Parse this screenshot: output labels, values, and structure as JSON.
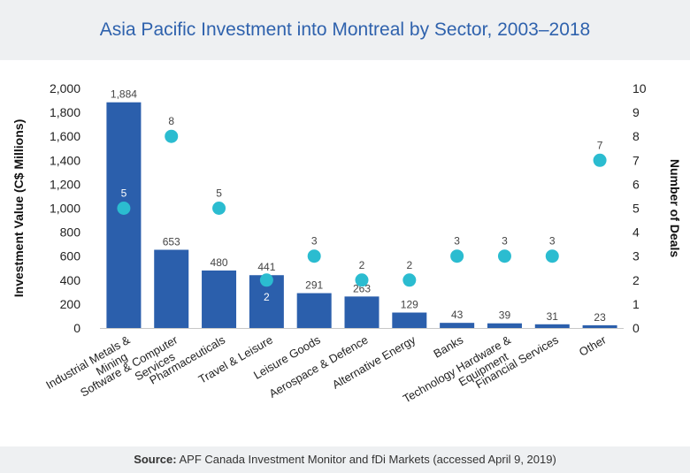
{
  "title": "Asia Pacific Investment into Montreal by Sector, 2003–2018",
  "source": {
    "label": "Source:",
    "text": "APF Canada Investment Monitor and fDi Markets (accessed April 9, 2019)"
  },
  "colors": {
    "bar": "#2b5fac",
    "dot": "#2bbcd0",
    "title": "#2f62ad",
    "band": "#eef0f2"
  },
  "chart_data": {
    "type": "bar",
    "title": "Asia Pacific Investment into Montreal by Sector, 2003–2018",
    "categories": [
      "Industrial Metals & Mining",
      "Software & Computer Services",
      "Pharmaceuticals",
      "Travel & Leisure",
      "Leisure Goods",
      "Aerospace & Defence",
      "Alternative Energy",
      "Banks",
      "Technology Hardware & Equipment",
      "Financial Services",
      "Other"
    ],
    "series": [
      {
        "name": "",
        "type": "bar",
        "axis": "left",
        "values": [
          1884,
          653,
          480,
          441,
          291,
          263,
          129,
          43,
          39,
          31,
          23
        ],
        "labels": [
          "1,884",
          "653",
          "480",
          "441",
          "291",
          "263",
          "129",
          "43",
          "39",
          "31",
          "23"
        ]
      },
      {
        "name": "",
        "type": "scatter",
        "axis": "right",
        "values": [
          5,
          8,
          5,
          2,
          3,
          2,
          2,
          3,
          3,
          3,
          7
        ],
        "labels": [
          "5",
          "8",
          "5",
          "2",
          "3",
          "2",
          "2",
          "3",
          "3",
          "3",
          "7"
        ]
      }
    ],
    "ylabel": "Investment Value (C$ Millions)",
    "y2label": "Number of Deals",
    "ylim": [
      0,
      2000
    ],
    "y2lim": [
      0,
      10
    ],
    "yticks": [
      "0",
      "200",
      "400",
      "600",
      "800",
      "1,000",
      "1,200",
      "1,400",
      "1,600",
      "1,800",
      "2,000"
    ],
    "y2ticks": [
      "0",
      "1",
      "2",
      "3",
      "4",
      "5",
      "6",
      "7",
      "8",
      "9",
      "10"
    ],
    "grid": false,
    "legend": "none"
  }
}
